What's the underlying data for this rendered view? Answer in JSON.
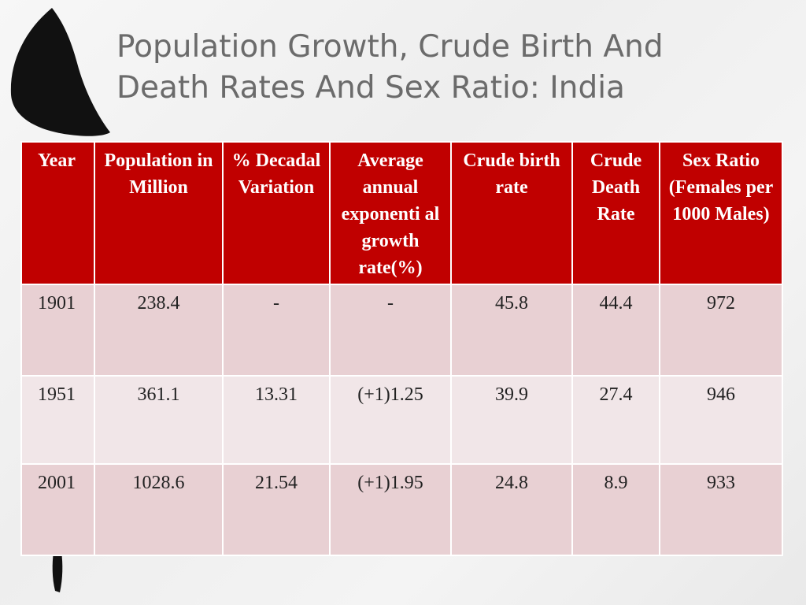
{
  "slide": {
    "title_line1": "Population Growth, Crude Birth And",
    "title_line2": "Death Rates And Sex Ratio: India"
  },
  "table": {
    "headers": [
      "Year",
      "Population in Million",
      "% Decadal Variation",
      "Average annual exponenti al growth rate(%)",
      "Crude birth rate",
      "Crude Death Rate",
      "Sex Ratio (Females per 1000 Males)"
    ],
    "rows": [
      [
        "1901",
        "238.4",
        "-",
        "-",
        "45.8",
        "44.4",
        "972"
      ],
      [
        "1951",
        "361.1",
        "13.31",
        "(+1)1.25",
        "39.9",
        "27.4",
        "946"
      ],
      [
        "2001",
        "1028.6",
        "21.54",
        "(+1)1.95",
        "24.8",
        "8.9",
        "933"
      ]
    ]
  },
  "colors": {
    "header_bg": "#c00000",
    "row_dark": "#e8d0d3",
    "row_light": "#f1e6e8",
    "title": "#6b6b6b"
  }
}
